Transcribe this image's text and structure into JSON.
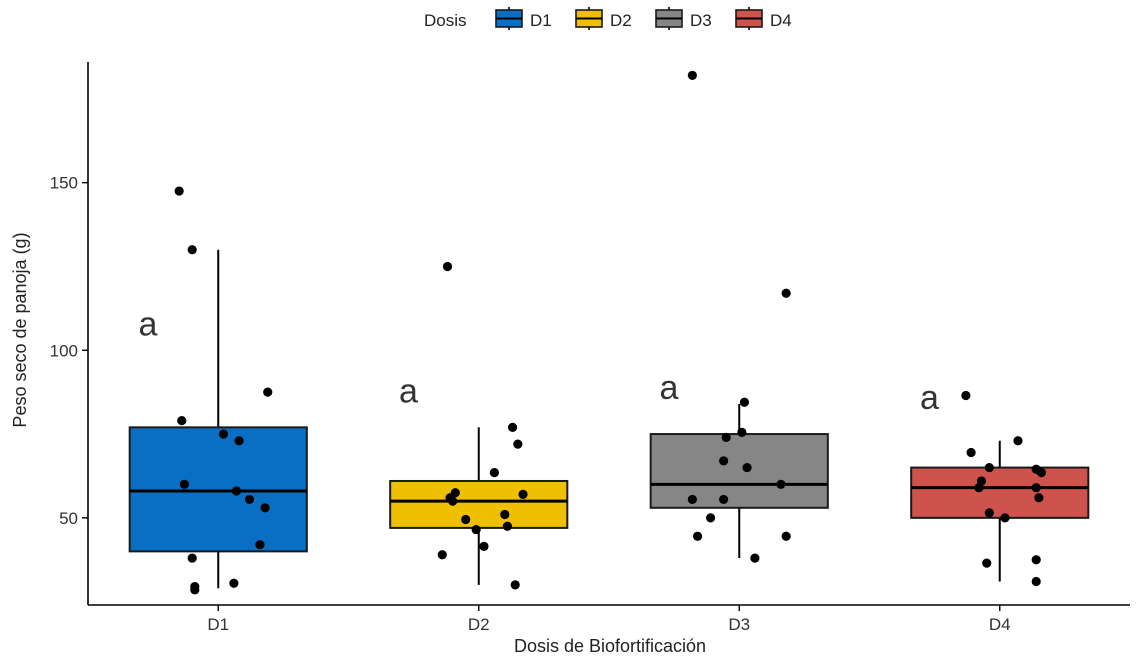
{
  "chart_data": {
    "type": "box",
    "xlabel": "Dosis de Biofortificación",
    "ylabel": "Peso seco de panoja (g)",
    "ylim": [
      24,
      186
    ],
    "yticks": [
      50,
      100,
      150
    ],
    "grid": false,
    "legend": {
      "title": "Dosis",
      "placement": "top",
      "entries": [
        "D1",
        "D2",
        "D3",
        "D4"
      ]
    },
    "categories": [
      "D1",
      "D2",
      "D3",
      "D4"
    ],
    "colors": [
      "#0a6fc2",
      "#efc000",
      "#868686",
      "#cd534c"
    ],
    "boxes": [
      {
        "name": "D1",
        "q1": 40,
        "median": 58,
        "q3": 77,
        "whisker_low": 29,
        "whisker_high": 130,
        "letter": "a",
        "letter_y": 108
      },
      {
        "name": "D2",
        "q1": 47,
        "median": 55,
        "q3": 61,
        "whisker_low": 30,
        "whisker_high": 77,
        "letter": "a",
        "letter_y": 88
      },
      {
        "name": "D3",
        "q1": 53,
        "median": 60,
        "q3": 75,
        "whisker_low": 38,
        "whisker_high": 84,
        "letter": "a",
        "letter_y": 89
      },
      {
        "name": "D4",
        "q1": 50,
        "median": 59,
        "q3": 65,
        "whisker_low": 31,
        "whisker_high": 73,
        "letter": "a",
        "letter_y": 86
      }
    ],
    "points": [
      {
        "group": "D1",
        "offset": -0.15,
        "y": 147.5
      },
      {
        "group": "D1",
        "offset": -0.1,
        "y": 130
      },
      {
        "group": "D1",
        "offset": 0.19,
        "y": 87.5
      },
      {
        "group": "D1",
        "offset": -0.14,
        "y": 79
      },
      {
        "group": "D1",
        "offset": 0.02,
        "y": 75
      },
      {
        "group": "D1",
        "offset": 0.08,
        "y": 73
      },
      {
        "group": "D1",
        "offset": -0.13,
        "y": 60
      },
      {
        "group": "D1",
        "offset": 0.07,
        "y": 58
      },
      {
        "group": "D1",
        "offset": 0.12,
        "y": 55.5
      },
      {
        "group": "D1",
        "offset": 0.18,
        "y": 53
      },
      {
        "group": "D1",
        "offset": 0.16,
        "y": 42
      },
      {
        "group": "D1",
        "offset": -0.1,
        "y": 38
      },
      {
        "group": "D1",
        "offset": 0.06,
        "y": 30.5
      },
      {
        "group": "D1",
        "offset": -0.09,
        "y": 29.5
      },
      {
        "group": "D1",
        "offset": -0.09,
        "y": 28.5
      },
      {
        "group": "D2",
        "offset": -0.12,
        "y": 125
      },
      {
        "group": "D2",
        "offset": 0.13,
        "y": 77
      },
      {
        "group": "D2",
        "offset": 0.15,
        "y": 72
      },
      {
        "group": "D2",
        "offset": 0.06,
        "y": 63.5
      },
      {
        "group": "D2",
        "offset": 0.17,
        "y": 57
      },
      {
        "group": "D2",
        "offset": -0.11,
        "y": 56
      },
      {
        "group": "D2",
        "offset": -0.09,
        "y": 57.5
      },
      {
        "group": "D2",
        "offset": -0.1,
        "y": 55
      },
      {
        "group": "D2",
        "offset": 0.1,
        "y": 51
      },
      {
        "group": "D2",
        "offset": -0.05,
        "y": 49.5
      },
      {
        "group": "D2",
        "offset": 0.11,
        "y": 47.5
      },
      {
        "group": "D2",
        "offset": -0.01,
        "y": 46.5
      },
      {
        "group": "D2",
        "offset": 0.02,
        "y": 41.5
      },
      {
        "group": "D2",
        "offset": -0.14,
        "y": 39
      },
      {
        "group": "D2",
        "offset": 0.14,
        "y": 30
      },
      {
        "group": "D3",
        "offset": -0.18,
        "y": 182
      },
      {
        "group": "D3",
        "offset": 0.18,
        "y": 117
      },
      {
        "group": "D3",
        "offset": 0.02,
        "y": 84.5
      },
      {
        "group": "D3",
        "offset": 0.01,
        "y": 75.5
      },
      {
        "group": "D3",
        "offset": -0.05,
        "y": 74
      },
      {
        "group": "D3",
        "offset": -0.06,
        "y": 67
      },
      {
        "group": "D3",
        "offset": 0.03,
        "y": 65
      },
      {
        "group": "D3",
        "offset": 0.16,
        "y": 60
      },
      {
        "group": "D3",
        "offset": -0.18,
        "y": 55.5
      },
      {
        "group": "D3",
        "offset": -0.06,
        "y": 55.5
      },
      {
        "group": "D3",
        "offset": -0.11,
        "y": 50
      },
      {
        "group": "D3",
        "offset": -0.16,
        "y": 44.5
      },
      {
        "group": "D3",
        "offset": 0.18,
        "y": 44.5
      },
      {
        "group": "D3",
        "offset": 0.06,
        "y": 38
      },
      {
        "group": "D4",
        "offset": -0.13,
        "y": 86.5
      },
      {
        "group": "D4",
        "offset": 0.07,
        "y": 73
      },
      {
        "group": "D4",
        "offset": -0.11,
        "y": 69.5
      },
      {
        "group": "D4",
        "offset": -0.04,
        "y": 65
      },
      {
        "group": "D4",
        "offset": 0.14,
        "y": 64.5
      },
      {
        "group": "D4",
        "offset": 0.16,
        "y": 63.5
      },
      {
        "group": "D4",
        "offset": -0.07,
        "y": 61
      },
      {
        "group": "D4",
        "offset": -0.08,
        "y": 59
      },
      {
        "group": "D4",
        "offset": 0.14,
        "y": 59
      },
      {
        "group": "D4",
        "offset": 0.15,
        "y": 56
      },
      {
        "group": "D4",
        "offset": -0.04,
        "y": 51.5
      },
      {
        "group": "D4",
        "offset": 0.02,
        "y": 50
      },
      {
        "group": "D4",
        "offset": -0.05,
        "y": 36.5
      },
      {
        "group": "D4",
        "offset": 0.14,
        "y": 37.5
      },
      {
        "group": "D4",
        "offset": 0.14,
        "y": 31
      }
    ]
  }
}
